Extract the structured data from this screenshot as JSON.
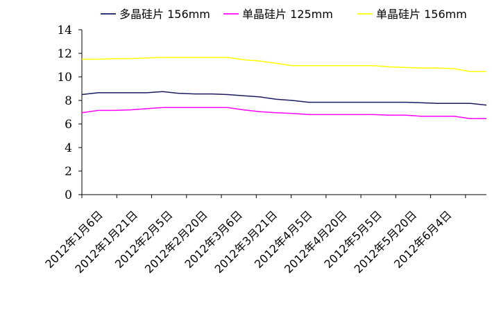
{
  "chart_data": {
    "type": "line",
    "title": "",
    "xlabel": "",
    "ylabel": "",
    "ylim": [
      0,
      14
    ],
    "yticks": [
      0,
      2,
      4,
      6,
      8,
      10,
      12,
      14
    ],
    "xtick_labels": [
      "2012年1月6日",
      "2012年1月21日",
      "2012年2月5日",
      "2012年2月20日",
      "2012年3月6日",
      "2012年3月21日",
      "2012年4月5日",
      "2012年4月20日",
      "2012年5月5日",
      "2012年5月20日",
      "2012年6月4日"
    ],
    "grid": false,
    "legend_position": "top",
    "series": [
      {
        "name": "多晶硅片 156mm",
        "color": "#1a1a5e",
        "values": [
          8.5,
          8.65,
          8.65,
          8.65,
          8.65,
          8.75,
          8.6,
          8.55,
          8.55,
          8.5,
          8.4,
          8.3,
          8.1,
          8.0,
          7.85,
          7.85,
          7.85,
          7.85,
          7.85,
          7.85,
          7.85,
          7.8,
          7.75,
          7.75,
          7.75,
          7.6
        ]
      },
      {
        "name": "单晶硅片 125mm",
        "color": "#ff00ff",
        "values": [
          6.95,
          7.15,
          7.15,
          7.2,
          7.3,
          7.4,
          7.4,
          7.4,
          7.4,
          7.4,
          7.2,
          7.05,
          6.95,
          6.9,
          6.8,
          6.8,
          6.8,
          6.8,
          6.8,
          6.75,
          6.75,
          6.65,
          6.65,
          6.65,
          6.45,
          6.45
        ]
      },
      {
        "name": "单晶硅片 156mm",
        "color": "#ffff00",
        "values": [
          11.5,
          11.5,
          11.55,
          11.55,
          11.6,
          11.65,
          11.65,
          11.65,
          11.65,
          11.65,
          11.45,
          11.35,
          11.15,
          10.95,
          10.95,
          10.95,
          10.95,
          10.95,
          10.95,
          10.85,
          10.8,
          10.75,
          10.75,
          10.7,
          10.45,
          10.45
        ]
      }
    ]
  }
}
